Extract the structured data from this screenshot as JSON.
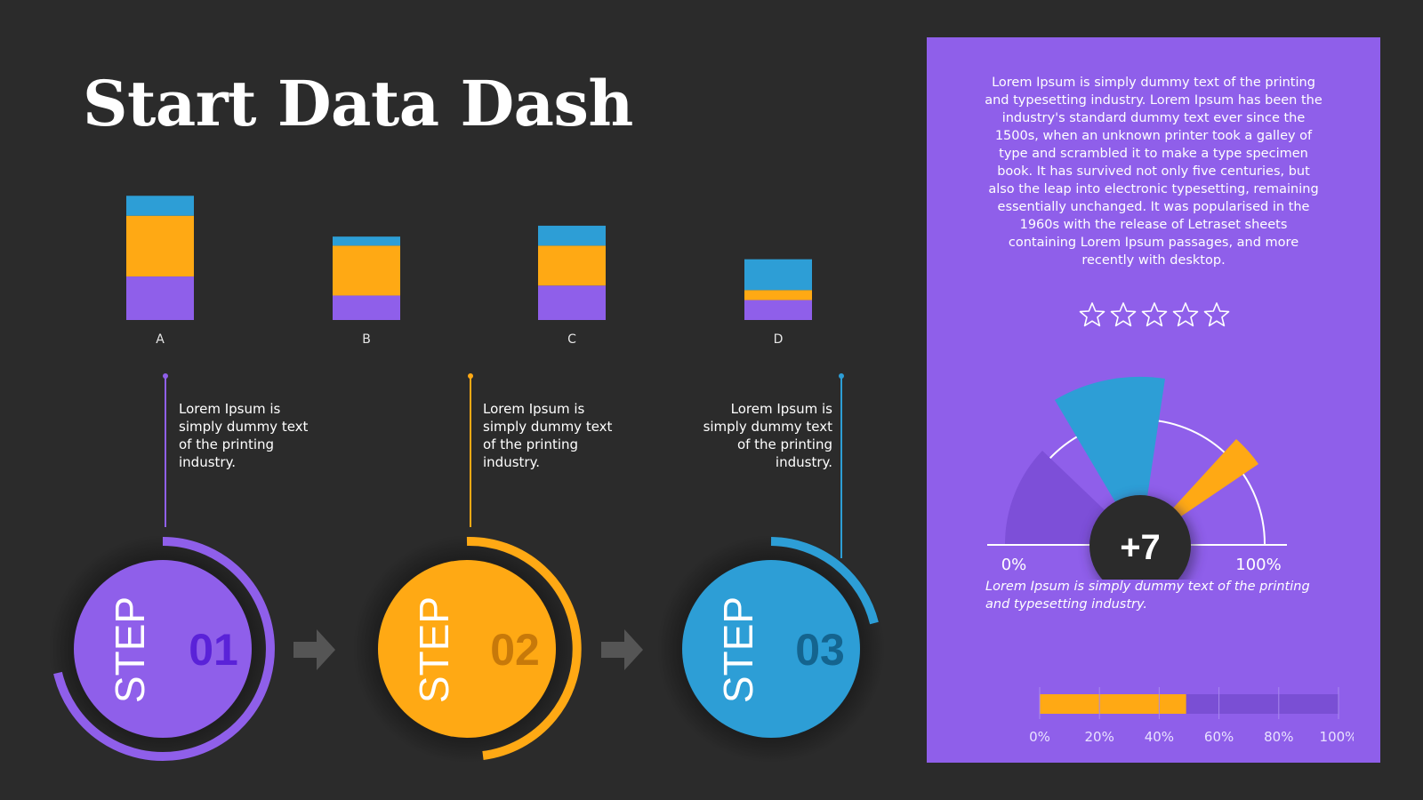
{
  "title": "Start Data Dash",
  "colors": {
    "background": "#2b2b2b",
    "purple": "#8f5fea",
    "orange": "#ffa914",
    "blue": "#2d9ed6",
    "dark_purple": "#5a22d8",
    "dark_orange": "#c7790a",
    "dark_blue": "#14648f"
  },
  "chart_data": {
    "type": "bar",
    "stacked": true,
    "categories": [
      "A",
      "B",
      "C",
      "D"
    ],
    "series": [
      {
        "color": "#8f5fea",
        "values": [
          48,
          27,
          38,
          22
        ]
      },
      {
        "color": "#ffa914",
        "values": [
          67,
          55,
          44,
          11
        ]
      },
      {
        "color": "#2d9ed6",
        "values": [
          22,
          10,
          22,
          34
        ]
      }
    ]
  },
  "steps": [
    {
      "word": "STEP",
      "number": "01",
      "text": "Lorem Ipsum is simply dummy text of the printing industry.",
      "color": "#8f5fea",
      "number_color": "#5a22d8"
    },
    {
      "word": "STEP",
      "number": "02",
      "text": "Lorem Ipsum is simply dummy text of the printing industry.",
      "color": "#ffa914",
      "number_color": "#c7790a"
    },
    {
      "word": "STEP",
      "number": "03",
      "text": "Lorem Ipsum is simply dummy text of the printing industry.",
      "color": "#2d9ed6",
      "number_color": "#14648f"
    }
  ],
  "panel": {
    "paragraph": "Lorem Ipsum is simply dummy text of the printing and typesetting industry. Lorem Ipsum has been the industry's standard dummy text ever since the 1500s, when an unknown printer took a galley of type and scrambled it to make a type specimen book. It has survived not only five centuries, but also the leap into electronic typesetting, remaining essentially unchanged. It was popularised in the 1960s with the release of Letraset sheets containing Lorem Ipsum passages, and more recently with desktop.",
    "rating": {
      "value": 0,
      "max": 5
    },
    "gauge": {
      "value_label": "+7",
      "min_label": "0%",
      "max_label": "100%"
    },
    "caption": "Lorem Ipsum is simply dummy text of the printing and typesetting industry.",
    "progress": {
      "value_percent": 49,
      "ticks": [
        "0%",
        "20%",
        "40%",
        "60%",
        "80%",
        "100%"
      ]
    }
  }
}
